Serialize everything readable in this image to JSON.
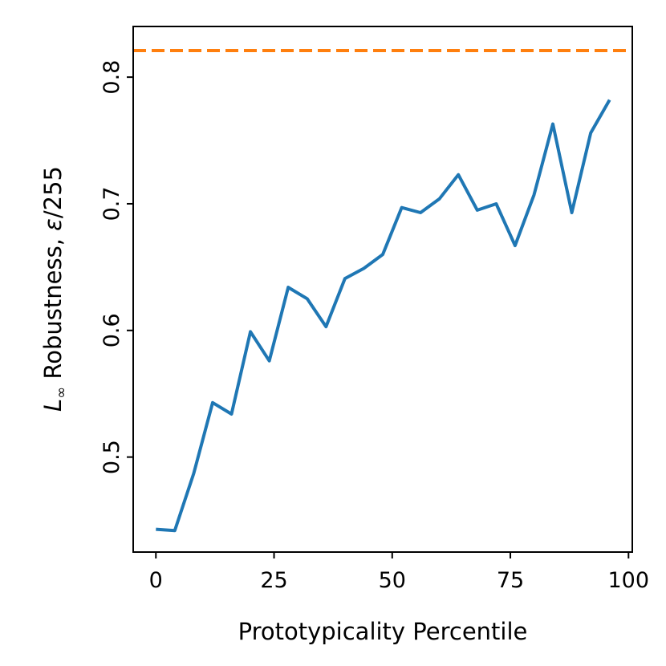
{
  "chart_data": {
    "type": "line",
    "title": "",
    "xlabel": "Prototypicality Percentile",
    "ylabel_main": "L",
    "ylabel_sub": "∞",
    "ylabel_rest": " Robustness, ",
    "ylabel_eps": "ε",
    "ylabel_unit": "/255",
    "xlim": [
      -4.8,
      100.8
    ],
    "ylim": [
      0.425,
      0.84
    ],
    "xticks": [
      0,
      25,
      50,
      75,
      100
    ],
    "xtick_labels": [
      "0",
      "25",
      "50",
      "75",
      "100"
    ],
    "yticks": [
      0.5,
      0.6,
      0.7,
      0.8
    ],
    "ytick_labels": [
      "0.5",
      "0.6",
      "0.7",
      "0.8"
    ],
    "grid": false,
    "series": [
      {
        "color": "#1f77b4",
        "style": "solid",
        "x": [
          0,
          4,
          8,
          12,
          16,
          20,
          24,
          28,
          32,
          36,
          40,
          44,
          48,
          52,
          56,
          60,
          64,
          68,
          72,
          76,
          80,
          84,
          88,
          92,
          96
        ],
        "y": [
          0.443,
          0.442,
          0.487,
          0.543,
          0.534,
          0.599,
          0.576,
          0.634,
          0.625,
          0.603,
          0.641,
          0.649,
          0.66,
          0.697,
          0.693,
          0.704,
          0.723,
          0.695,
          0.7,
          0.667,
          0.707,
          0.763,
          0.693,
          0.756,
          0.782
        ]
      }
    ],
    "reference_lines": [
      {
        "orientation": "horizontal",
        "y": 0.821,
        "color": "#ff7f0e",
        "style": "dashed"
      }
    ]
  }
}
